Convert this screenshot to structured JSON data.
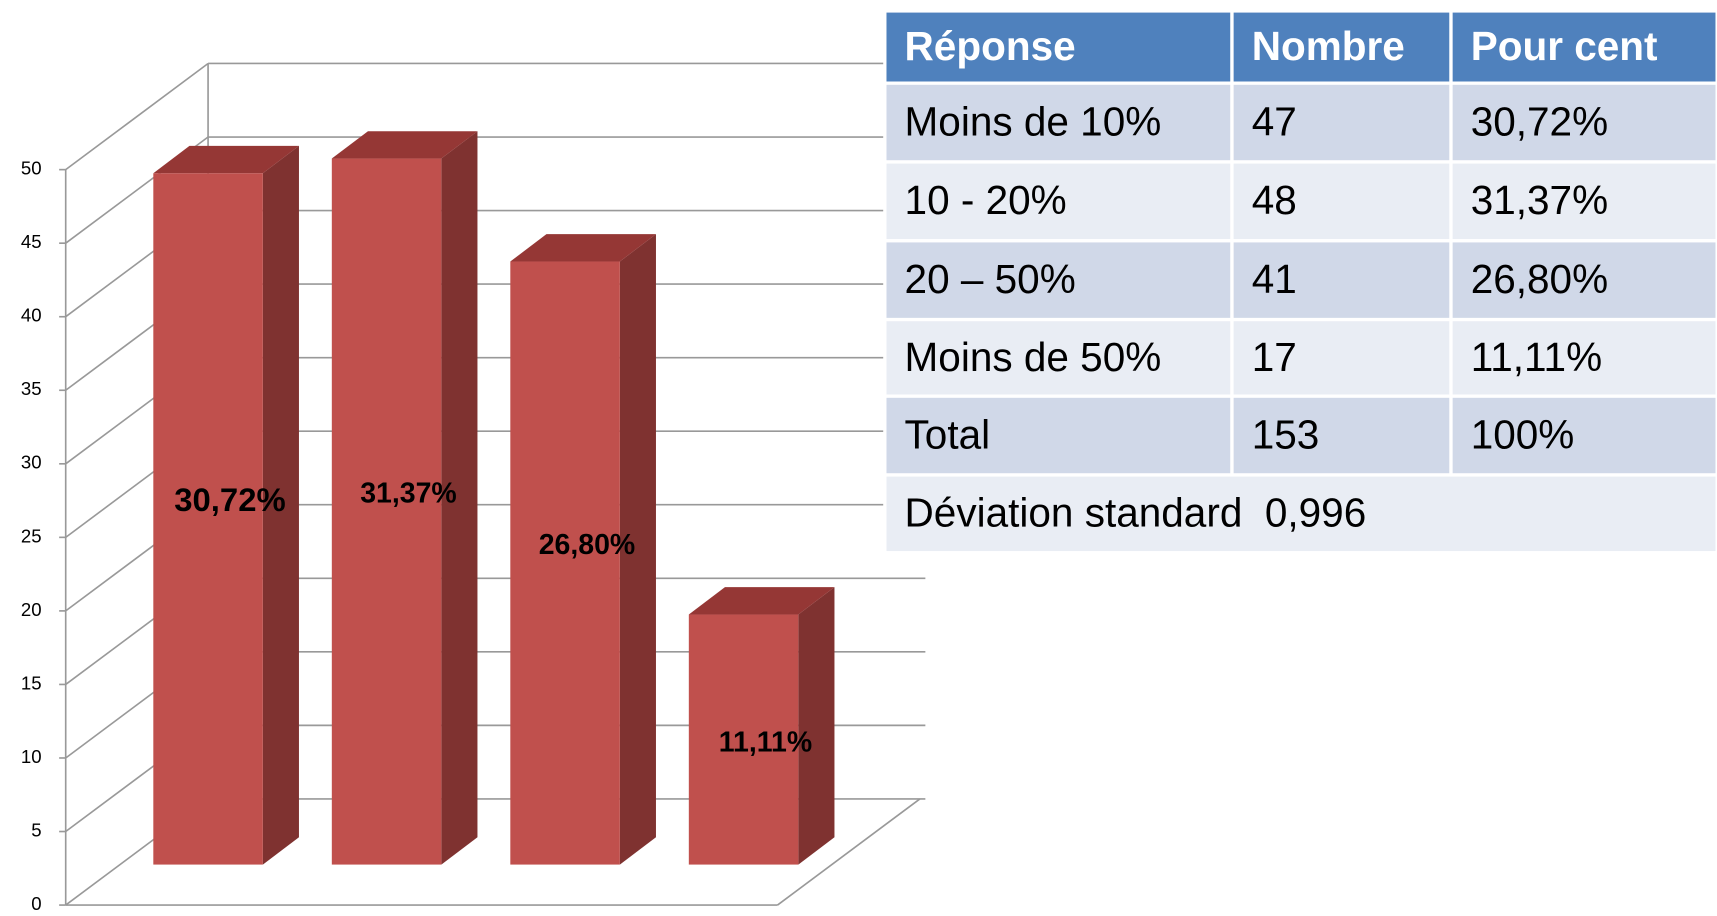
{
  "chart_data": {
    "type": "bar",
    "categories": [
      null,
      null,
      null,
      null
    ],
    "values": [
      47,
      48,
      41,
      17
    ],
    "value_labels": [
      "30,72%",
      "31,37%",
      "26,80%",
      "11,11%"
    ],
    "color": "#c0504d",
    "ylim": [
      0,
      50
    ],
    "yticks": [
      0,
      5,
      10,
      15,
      20,
      25,
      30,
      35,
      40,
      45,
      50
    ],
    "grid": true
  },
  "table": {
    "header": [
      "Réponse",
      "Nombre",
      "Pour cent"
    ],
    "rows": [
      [
        "Moins de 10%",
        "47",
        "30,72%"
      ],
      [
        "10 - 20%",
        "48",
        "31,37%"
      ],
      [
        "20 – 50%",
        "41",
        "26,80%"
      ],
      [
        "Moins de 50%",
        "17",
        "11,11%"
      ],
      [
        "Total",
        "153",
        "100%"
      ]
    ],
    "footer": "Déviation standard  0,996",
    "highlight": {
      "row": 3,
      "color": "#ff0000"
    }
  }
}
